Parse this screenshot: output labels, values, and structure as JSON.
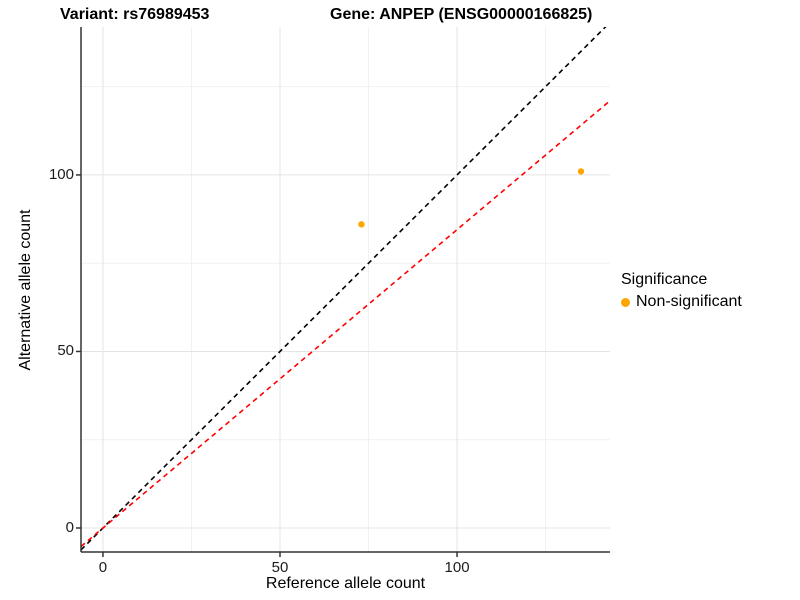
{
  "header": {
    "title_left": "Variant: rs76989453",
    "title_right": "Gene: ANPEP (ENSG00000166825)"
  },
  "chart_data": {
    "type": "scatter",
    "title": "Variant: rs76989453  Gene: ANPEP (ENSG00000166825)",
    "xlabel": "Reference allele count",
    "ylabel": "Alternative allele count",
    "xlim": [
      -6.2,
      143.2
    ],
    "ylim": [
      -6.8,
      141.9
    ],
    "x_ticks": [
      0,
      50,
      100
    ],
    "y_ticks": [
      0,
      50,
      100
    ],
    "x_minor_ticks": [
      25,
      75,
      125
    ],
    "y_minor_ticks": [
      25,
      75,
      125
    ],
    "grid": {
      "background": "#ffffff",
      "major_color": "#e4e4e4",
      "minor_color": "#f1f1f1",
      "axis_line_color": "#333333"
    },
    "series": [
      {
        "name": "Non-significant",
        "color": "#FFA500",
        "points": [
          {
            "x": 73,
            "y": 86
          },
          {
            "x": 135,
            "y": 101
          }
        ]
      }
    ],
    "ablines": [
      {
        "name": "identity-line",
        "slope": 1,
        "intercept": 0,
        "color": "#000000",
        "style": "dashed"
      },
      {
        "name": "expected-ratio-line",
        "slope": 0.845,
        "intercept": 0,
        "color": "#ff0000",
        "style": "dashed"
      }
    ],
    "legend": {
      "position": "right",
      "title": "Significance",
      "items": [
        {
          "label": "Non-significant",
          "color": "#FFA500"
        }
      ]
    }
  }
}
